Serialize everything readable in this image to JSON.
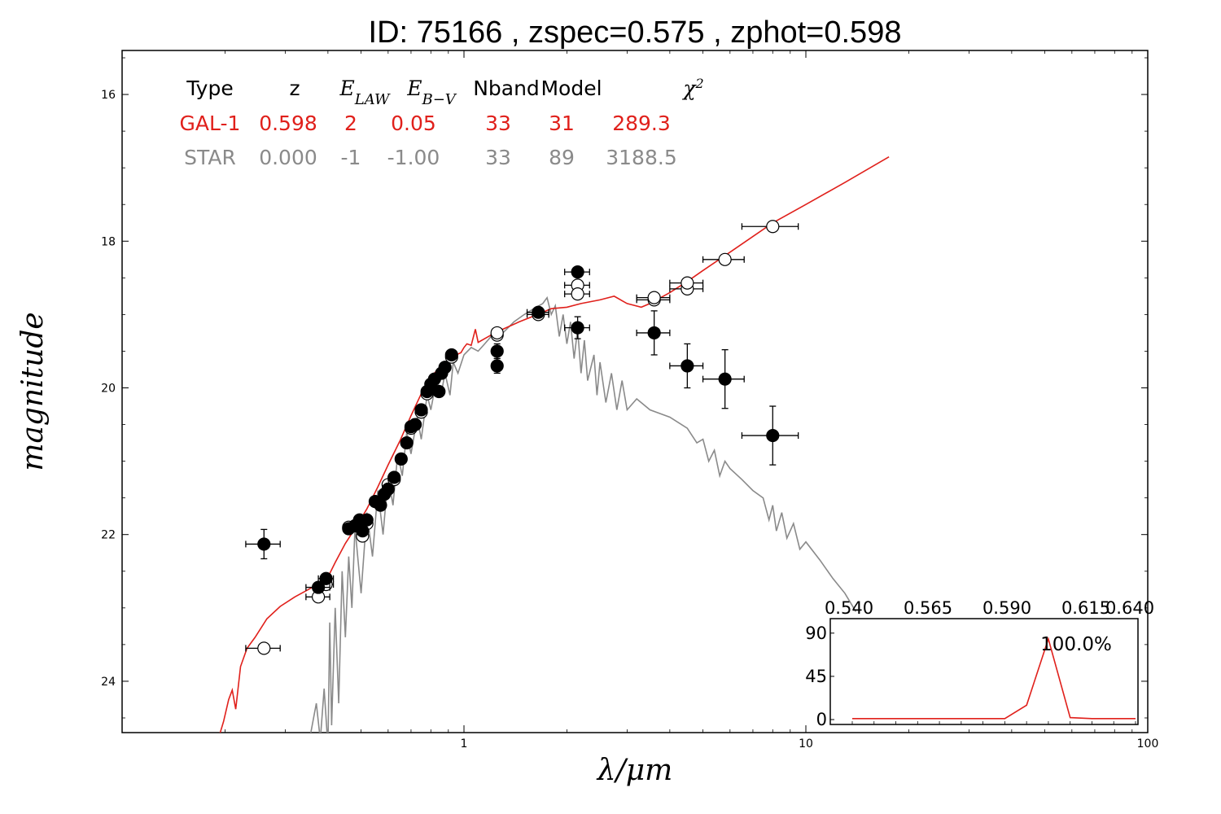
{
  "chart_data": {
    "type": "scatter",
    "title": "ID:  75166 , zspec=0.575 , zphot=0.598",
    "xlabel": "λ/μm",
    "ylabel": "magnitude",
    "x_scale": "log",
    "xlim": [
      0.1,
      100
    ],
    "ylim": [
      24.7,
      15.4
    ],
    "x_ticks": [
      {
        "v": 1,
        "label": "1"
      },
      {
        "v": 10,
        "label": "10"
      },
      {
        "v": 100,
        "label": "100"
      }
    ],
    "y_ticks": [
      {
        "v": 16,
        "label": "16"
      },
      {
        "v": 18,
        "label": "18"
      },
      {
        "v": 20,
        "label": "20"
      },
      {
        "v": 22,
        "label": "22"
      },
      {
        "v": 24,
        "label": "24"
      }
    ],
    "colors": {
      "galaxy": "#e0201b",
      "star": "#8a8a8a",
      "points": "#000000"
    },
    "table": {
      "headers": [
        {
          "key": "type",
          "text": "Type",
          "math": false
        },
        {
          "key": "z",
          "text": "z",
          "math": false
        },
        {
          "key": "elaw",
          "text": "E",
          "sub": "LAW",
          "math": true
        },
        {
          "key": "ebv",
          "text": "E",
          "sub": "B−V",
          "math": true
        },
        {
          "key": "nband",
          "text": "Nband",
          "math": false
        },
        {
          "key": "model",
          "text": "Model",
          "math": false
        },
        {
          "key": "chi2",
          "text": "χ",
          "sup": "2",
          "math": true
        }
      ],
      "rows": [
        {
          "values": [
            "GAL-1",
            "0.598",
            "2",
            "0.05",
            "33",
            "31",
            "289.3"
          ],
          "color": "#e0201b"
        },
        {
          "values": [
            "STAR",
            "0.000",
            "-1",
            "-1.00",
            "33",
            "89",
            "3188.5"
          ],
          "color": "#8a8a8a"
        }
      ]
    },
    "galaxy_model": [
      [
        0.188,
        24.9
      ],
      [
        0.198,
        24.55
      ],
      [
        0.205,
        24.25
      ],
      [
        0.21,
        24.12
      ],
      [
        0.215,
        24.38
      ],
      [
        0.222,
        23.8
      ],
      [
        0.232,
        23.55
      ],
      [
        0.245,
        23.4
      ],
      [
        0.265,
        23.15
      ],
      [
        0.29,
        22.98
      ],
      [
        0.32,
        22.85
      ],
      [
        0.36,
        22.72
      ],
      [
        0.4,
        22.58
      ],
      [
        0.42,
        22.38
      ],
      [
        0.45,
        22.12
      ],
      [
        0.48,
        21.92
      ],
      [
        0.52,
        21.65
      ],
      [
        0.56,
        21.35
      ],
      [
        0.6,
        21.05
      ],
      [
        0.65,
        20.72
      ],
      [
        0.7,
        20.38
      ],
      [
        0.75,
        20.08
      ],
      [
        0.8,
        19.85
      ],
      [
        0.85,
        19.72
      ],
      [
        0.9,
        19.62
      ],
      [
        0.95,
        19.55
      ],
      [
        0.98,
        19.52
      ],
      [
        1.0,
        19.45
      ],
      [
        1.02,
        19.4
      ],
      [
        1.05,
        19.42
      ],
      [
        1.08,
        19.2
      ],
      [
        1.1,
        19.38
      ],
      [
        1.2,
        19.28
      ],
      [
        1.3,
        19.2
      ],
      [
        1.45,
        19.1
      ],
      [
        1.6,
        19.02
      ],
      [
        1.8,
        18.92
      ],
      [
        2.0,
        18.9
      ],
      [
        2.2,
        18.85
      ],
      [
        2.5,
        18.8
      ],
      [
        2.75,
        18.75
      ],
      [
        3.0,
        18.85
      ],
      [
        3.3,
        18.9
      ],
      [
        3.5,
        18.85
      ],
      [
        4.0,
        18.7
      ],
      [
        4.5,
        18.55
      ],
      [
        5.0,
        18.4
      ],
      [
        6.0,
        18.15
      ],
      [
        8.0,
        17.75
      ],
      [
        10.0,
        17.5
      ],
      [
        13.0,
        17.2
      ],
      [
        17.5,
        16.85
      ]
    ],
    "star_model": [
      [
        0.35,
        24.9
      ],
      [
        0.37,
        24.3
      ],
      [
        0.38,
        24.8
      ],
      [
        0.39,
        24.1
      ],
      [
        0.4,
        24.9
      ],
      [
        0.405,
        23.2
      ],
      [
        0.41,
        24.6
      ],
      [
        0.42,
        23.0
      ],
      [
        0.43,
        24.3
      ],
      [
        0.44,
        22.5
      ],
      [
        0.45,
        23.4
      ],
      [
        0.46,
        22.3
      ],
      [
        0.47,
        23.0
      ],
      [
        0.48,
        21.9
      ],
      [
        0.5,
        22.8
      ],
      [
        0.52,
        21.7
      ],
      [
        0.54,
        22.3
      ],
      [
        0.56,
        21.4
      ],
      [
        0.58,
        22.0
      ],
      [
        0.6,
        21.2
      ],
      [
        0.62,
        21.6
      ],
      [
        0.64,
        20.9
      ],
      [
        0.66,
        21.2
      ],
      [
        0.68,
        20.6
      ],
      [
        0.7,
        20.9
      ],
      [
        0.73,
        20.4
      ],
      [
        0.75,
        20.7
      ],
      [
        0.78,
        20.1
      ],
      [
        0.8,
        20.3
      ],
      [
        0.83,
        19.9
      ],
      [
        0.86,
        20.05
      ],
      [
        0.88,
        19.8
      ],
      [
        0.91,
        20.1
      ],
      [
        0.93,
        19.65
      ],
      [
        0.96,
        19.8
      ],
      [
        1.0,
        19.55
      ],
      [
        1.05,
        19.45
      ],
      [
        1.1,
        19.5
      ],
      [
        1.15,
        19.4
      ],
      [
        1.2,
        19.3
      ],
      [
        1.25,
        19.2
      ],
      [
        1.3,
        19.25
      ],
      [
        1.4,
        19.1
      ],
      [
        1.5,
        19.0
      ],
      [
        1.6,
        18.92
      ],
      [
        1.7,
        18.85
      ],
      [
        1.75,
        18.77
      ],
      [
        1.8,
        19.0
      ],
      [
        1.85,
        18.88
      ],
      [
        1.9,
        19.3
      ],
      [
        1.95,
        19.0
      ],
      [
        2.0,
        19.4
      ],
      [
        2.05,
        19.1
      ],
      [
        2.1,
        19.6
      ],
      [
        2.15,
        19.2
      ],
      [
        2.2,
        19.8
      ],
      [
        2.25,
        19.35
      ],
      [
        2.3,
        19.9
      ],
      [
        2.4,
        19.55
      ],
      [
        2.45,
        20.1
      ],
      [
        2.5,
        19.65
      ],
      [
        2.6,
        20.2
      ],
      [
        2.7,
        19.8
      ],
      [
        2.8,
        20.3
      ],
      [
        2.9,
        19.9
      ],
      [
        3.0,
        20.3
      ],
      [
        3.2,
        20.15
      ],
      [
        3.5,
        20.3
      ],
      [
        4.0,
        20.4
      ],
      [
        4.5,
        20.55
      ],
      [
        4.8,
        20.75
      ],
      [
        5.0,
        20.7
      ],
      [
        5.2,
        21.0
      ],
      [
        5.4,
        20.85
      ],
      [
        5.6,
        21.2
      ],
      [
        5.8,
        21.0
      ],
      [
        6.0,
        21.1
      ],
      [
        6.5,
        21.25
      ],
      [
        7.0,
        21.4
      ],
      [
        7.5,
        21.5
      ],
      [
        7.8,
        21.8
      ],
      [
        8.0,
        21.6
      ],
      [
        8.2,
        21.95
      ],
      [
        8.5,
        21.7
      ],
      [
        8.8,
        22.05
      ],
      [
        9.2,
        21.85
      ],
      [
        9.6,
        22.2
      ],
      [
        10.0,
        22.1
      ],
      [
        11.0,
        22.35
      ],
      [
        12.0,
        22.6
      ],
      [
        13.0,
        22.8
      ],
      [
        14.0,
        23.05
      ]
    ],
    "observed": [
      {
        "x": 0.26,
        "y": 22.13,
        "xerr": 0.03,
        "yerr": 0.2
      },
      {
        "x": 0.375,
        "y": 22.72,
        "xerr": 0.03,
        "yerr": 0.05
      },
      {
        "x": 0.395,
        "y": 22.6,
        "xerr": 0.02,
        "yerr": 0.05
      },
      {
        "x": 0.46,
        "y": 21.92,
        "xerr": 0.015,
        "yerr": 0.05
      },
      {
        "x": 0.48,
        "y": 21.88,
        "xerr": 0.015,
        "yerr": 0.05
      },
      {
        "x": 0.495,
        "y": 21.8,
        "xerr": 0.015,
        "yerr": 0.05
      },
      {
        "x": 0.505,
        "y": 21.95,
        "xerr": 0.015,
        "yerr": 0.05
      },
      {
        "x": 0.52,
        "y": 21.8,
        "xerr": 0.015,
        "yerr": 0.05
      },
      {
        "x": 0.55,
        "y": 21.55,
        "xerr": 0.015,
        "yerr": 0.05
      },
      {
        "x": 0.57,
        "y": 21.6,
        "xerr": 0.015,
        "yerr": 0.05
      },
      {
        "x": 0.585,
        "y": 21.45,
        "xerr": 0.015,
        "yerr": 0.05
      },
      {
        "x": 0.6,
        "y": 21.38,
        "xerr": 0.015,
        "yerr": 0.05
      },
      {
        "x": 0.625,
        "y": 21.22,
        "xerr": 0.015,
        "yerr": 0.05
      },
      {
        "x": 0.655,
        "y": 20.97,
        "xerr": 0.015,
        "yerr": 0.05
      },
      {
        "x": 0.68,
        "y": 20.75,
        "xerr": 0.015,
        "yerr": 0.05
      },
      {
        "x": 0.7,
        "y": 20.53,
        "xerr": 0.02,
        "yerr": 0.05
      },
      {
        "x": 0.72,
        "y": 20.5,
        "xerr": 0.02,
        "yerr": 0.05
      },
      {
        "x": 0.75,
        "y": 20.3,
        "xerr": 0.02,
        "yerr": 0.05
      },
      {
        "x": 0.78,
        "y": 20.05,
        "xerr": 0.02,
        "yerr": 0.05
      },
      {
        "x": 0.8,
        "y": 19.95,
        "xerr": 0.02,
        "yerr": 0.05
      },
      {
        "x": 0.82,
        "y": 19.88,
        "xerr": 0.02,
        "yerr": 0.05
      },
      {
        "x": 0.845,
        "y": 20.05,
        "xerr": 0.02,
        "yerr": 0.05
      },
      {
        "x": 0.86,
        "y": 19.8,
        "xerr": 0.02,
        "yerr": 0.05
      },
      {
        "x": 0.88,
        "y": 19.72,
        "xerr": 0.02,
        "yerr": 0.05
      },
      {
        "x": 0.92,
        "y": 19.55,
        "xerr": 0.03,
        "yerr": 0.05
      },
      {
        "x": 1.25,
        "y": 19.5,
        "xerr": 0.04,
        "yerr": 0.1
      },
      {
        "x": 1.25,
        "y": 19.7,
        "xerr": 0.04,
        "yerr": 0.1
      },
      {
        "x": 1.65,
        "y": 18.97,
        "xerr": 0.12,
        "yerr": 0.05
      },
      {
        "x": 2.15,
        "y": 18.42,
        "xerr": 0.18,
        "yerr": 0.05
      },
      {
        "x": 2.15,
        "y": 19.18,
        "xerr": 0.18,
        "yerr": 0.15
      },
      {
        "x": 3.6,
        "y": 19.25,
        "xerr": 0.4,
        "yerr": 0.3
      },
      {
        "x": 4.5,
        "y": 19.7,
        "xerr": 0.5,
        "yerr": 0.3
      },
      {
        "x": 5.8,
        "y": 19.88,
        "xerr": 0.8,
        "yerr": 0.4
      },
      {
        "x": 8.0,
        "y": 20.65,
        "xerr": 1.5,
        "yerr": 0.4
      }
    ],
    "model_points": [
      {
        "x": 0.26,
        "y": 23.55,
        "xerr": 0.03
      },
      {
        "x": 0.375,
        "y": 22.85,
        "xerr": 0.03
      },
      {
        "x": 0.395,
        "y": 22.68,
        "xerr": 0.02
      },
      {
        "x": 0.46,
        "y": 21.9,
        "xerr": 0.015
      },
      {
        "x": 0.505,
        "y": 22.02,
        "xerr": 0.015
      },
      {
        "x": 0.52,
        "y": 21.85,
        "xerr": 0.015
      },
      {
        "x": 0.6,
        "y": 21.32,
        "xerr": 0.015
      },
      {
        "x": 0.625,
        "y": 21.25,
        "xerr": 0.015
      },
      {
        "x": 0.7,
        "y": 20.55,
        "xerr": 0.02
      },
      {
        "x": 0.75,
        "y": 20.33,
        "xerr": 0.02
      },
      {
        "x": 0.78,
        "y": 20.08,
        "xerr": 0.02
      },
      {
        "x": 0.92,
        "y": 19.58,
        "xerr": 0.03
      },
      {
        "x": 1.25,
        "y": 19.28,
        "xerr": 0.04
      },
      {
        "x": 1.25,
        "y": 19.25,
        "xerr": 0.04
      },
      {
        "x": 1.65,
        "y": 19.0,
        "xerr": 0.12
      },
      {
        "x": 2.15,
        "y": 18.6,
        "xerr": 0.18
      },
      {
        "x": 2.15,
        "y": 18.72,
        "xerr": 0.18
      },
      {
        "x": 3.6,
        "y": 18.8,
        "xerr": 0.4
      },
      {
        "x": 3.6,
        "y": 18.77,
        "xerr": 0.4
      },
      {
        "x": 4.5,
        "y": 18.65,
        "xerr": 0.5
      },
      {
        "x": 4.5,
        "y": 18.57,
        "xerr": 0.5
      },
      {
        "x": 5.8,
        "y": 18.25,
        "xerr": 0.8
      },
      {
        "x": 8.0,
        "y": 17.8,
        "xerr": 1.5
      }
    ],
    "inset": {
      "type": "line",
      "xlim": [
        0.54,
        0.64
      ],
      "ylim": [
        -6,
        100
      ],
      "x_ticks": [
        "0.540",
        "0.565",
        "0.590",
        "0.615",
        "0.640"
      ],
      "y_ticks": [
        "0",
        "45",
        "90"
      ],
      "annotation": "100.0%",
      "x": [
        0.54,
        0.5475,
        0.555,
        0.5625,
        0.57,
        0.5775,
        0.585,
        0.5925,
        0.6,
        0.6075,
        0.615,
        0.6225,
        0.63,
        0.6375
      ],
      "y": [
        1,
        1,
        1,
        1,
        1,
        1,
        1,
        1,
        15,
        84,
        2,
        1,
        1,
        1
      ]
    }
  }
}
